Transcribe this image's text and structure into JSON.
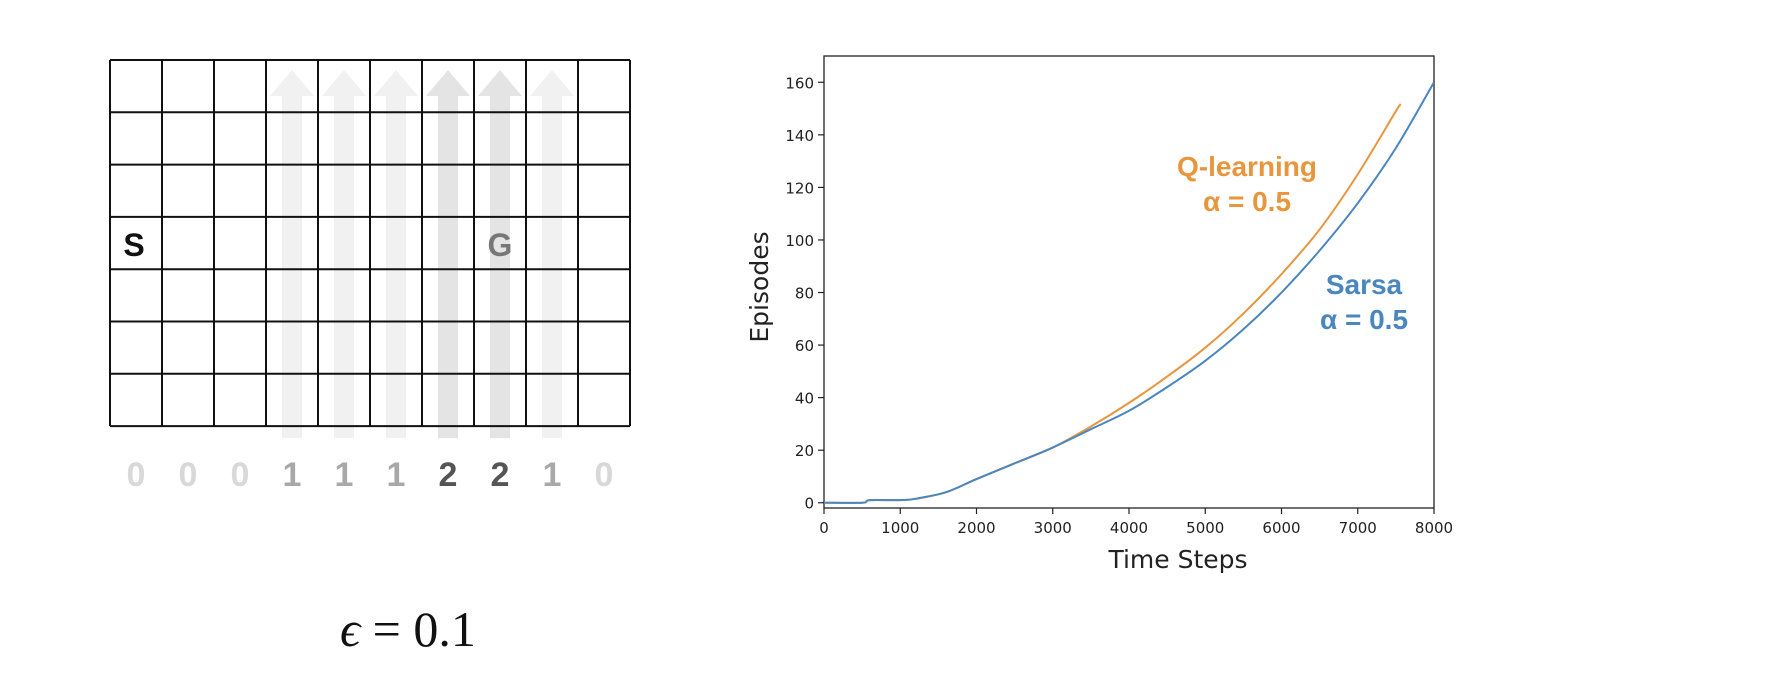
{
  "gridworld": {
    "start_label": "S",
    "goal_label": "G",
    "wind_strengths": [
      "0",
      "0",
      "0",
      "1",
      "1",
      "1",
      "2",
      "2",
      "1",
      "0"
    ],
    "epsilon_symbol": "ϵ",
    "epsilon_rest": "= 0.1",
    "colors": {
      "grid_line": "#111111",
      "wind_0": "#d8d8d8",
      "wind_1": "#a8a8a8",
      "wind_2": "#555555",
      "arrow_light": "#f1f1f1",
      "arrow_dark": "#e4e4e4"
    }
  },
  "chart_data": {
    "type": "line",
    "title": "",
    "xlabel": "Time Steps",
    "ylabel": "Episodes",
    "xlim": [
      0,
      8000
    ],
    "ylim": [
      -2,
      170
    ],
    "xticks": [
      0,
      1000,
      2000,
      3000,
      4000,
      5000,
      6000,
      7000,
      8000
    ],
    "yticks": [
      0,
      20,
      40,
      60,
      80,
      100,
      120,
      140,
      160
    ],
    "grid": false,
    "series": [
      {
        "name": "Q-learning",
        "annotation": [
          "Q-learning",
          "α = 0.5"
        ],
        "color": "#e8963e",
        "x": [
          0,
          500,
          600,
          1000,
          1200,
          1600,
          2000,
          2500,
          3000,
          3500,
          4000,
          4500,
          5000,
          5500,
          6000,
          6500,
          7000,
          7500,
          7550
        ],
        "y": [
          0,
          0,
          1,
          1,
          1.5,
          4,
          9,
          15,
          21,
          29,
          38,
          48,
          59,
          72,
          87,
          104,
          125,
          149,
          151
        ]
      },
      {
        "name": "Sarsa",
        "annotation": [
          "Sarsa",
          "α = 0.5"
        ],
        "color": "#4a86bf",
        "x": [
          0,
          500,
          600,
          1000,
          1200,
          1600,
          2000,
          2500,
          3000,
          3500,
          4000,
          4500,
          5000,
          5500,
          6000,
          6500,
          7000,
          7500,
          8000
        ],
        "y": [
          0,
          0,
          1,
          1,
          1.5,
          4,
          9,
          15,
          21,
          28,
          35,
          44,
          54,
          66,
          80,
          96,
          114,
          135,
          160
        ]
      }
    ]
  }
}
